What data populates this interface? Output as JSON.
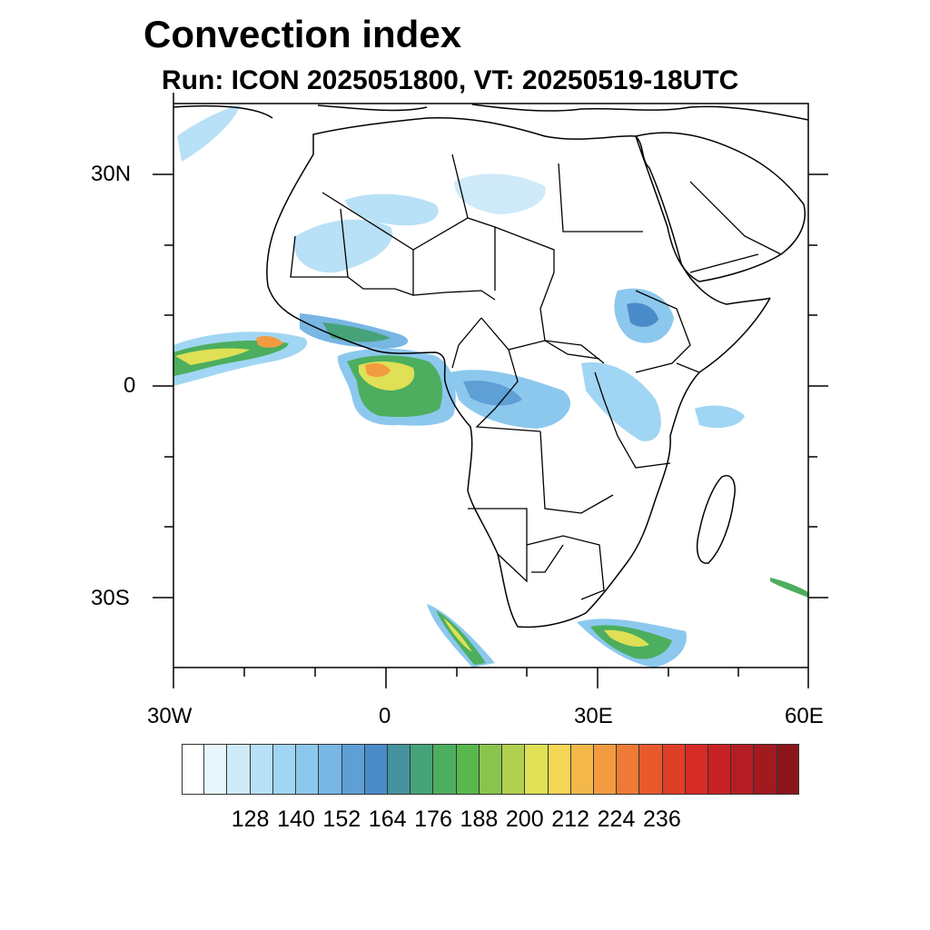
{
  "title": "Convection index",
  "subtitle": "Run: ICON 2025051800,  VT: 20250519-18UTC",
  "map": {
    "region": "Africa",
    "lon_range": [
      -30,
      60
    ],
    "lat_range": [
      -40,
      40
    ],
    "x_ticks": [
      "30W",
      "0",
      "30E",
      "60E"
    ],
    "y_ticks": [
      "30N",
      "0",
      "30S"
    ]
  },
  "colorbar": {
    "labels": [
      "128",
      "140",
      "152",
      "164",
      "176",
      "188",
      "200",
      "212",
      "224",
      "236"
    ],
    "colors": [
      "#ffffff",
      "#e8f5fc",
      "#cfeaf9",
      "#b8e0f6",
      "#a0d6f3",
      "#8cc8ee",
      "#78b6e4",
      "#5e9fd6",
      "#4a8bc9",
      "#45939c",
      "#46a279",
      "#4cae5e",
      "#58b84c",
      "#8ac44d",
      "#b1d04f",
      "#dfe055",
      "#f5d555",
      "#f4b84a",
      "#f39b40",
      "#ef7a35",
      "#e8592c",
      "#df3f28",
      "#d62b26",
      "#c62226",
      "#b41d23",
      "#a01a20",
      "#8c1519"
    ]
  },
  "colors": {
    "coast": "#000000",
    "ocean": "#ffffff"
  }
}
